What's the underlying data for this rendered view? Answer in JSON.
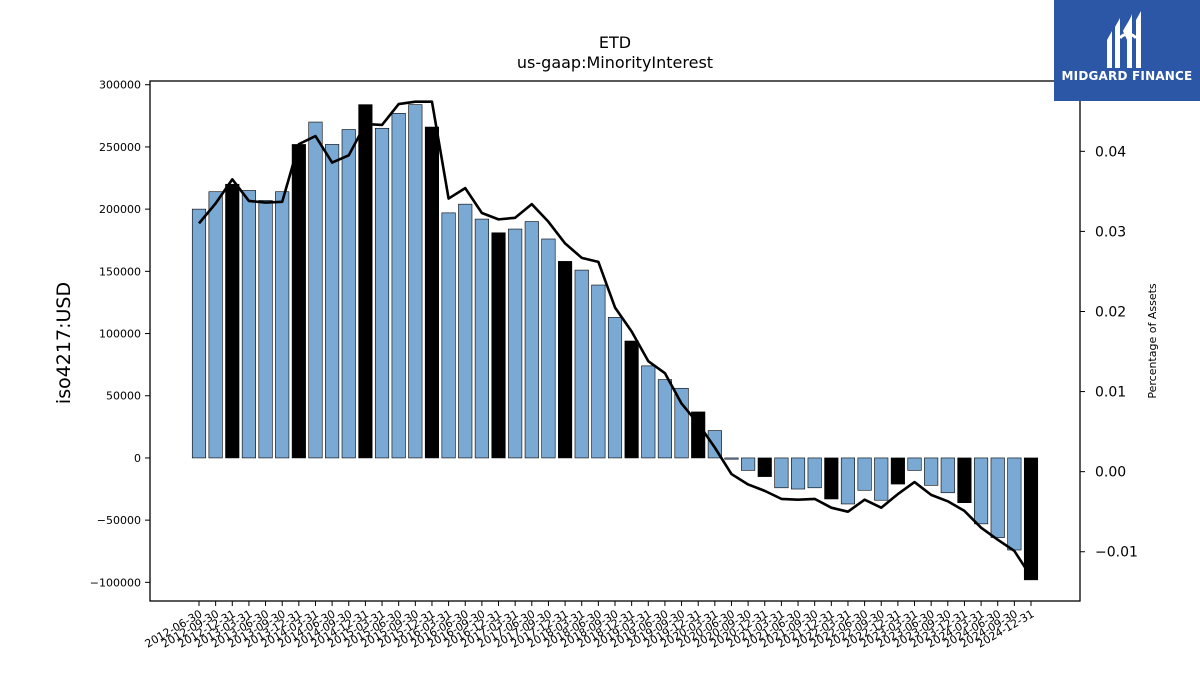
{
  "brand": {
    "name": "MIDGARD FINANCE",
    "bg_color": "#2b57a6",
    "icon": "midgard-logo-icon"
  },
  "chart_data": {
    "type": "bar",
    "title": "ETD",
    "subtitle": "us-gaap:MinorityInterest",
    "ylabel": "iso4217:USD",
    "y2label": "Percentage of Assets",
    "ylim": [
      -115000,
      303000
    ],
    "y2lim": [
      -0.01615,
      0.04878
    ],
    "yticks": [
      -100000,
      -50000,
      0,
      50000,
      100000,
      150000,
      200000,
      250000,
      300000
    ],
    "yticks_display": [
      "−100000",
      "−50000",
      "0",
      "50000",
      "100000",
      "150000",
      "200000",
      "250000",
      "300000"
    ],
    "y2ticks": [
      -0.01,
      0.0,
      0.01,
      0.02,
      0.03,
      0.04
    ],
    "y2ticks_display": [
      "−0.01",
      "0.00",
      "0.01",
      "0.02",
      "0.03",
      "0.04"
    ],
    "grid": false,
    "colors": {
      "quarter": "#7aaad4",
      "year_end": "#000000",
      "line": "#000000"
    },
    "categories": [
      "2012-06-30",
      "2012-09-30",
      "2012-12-31",
      "2013-03-31",
      "2013-06-30",
      "2013-09-30",
      "2013-12-31",
      "2014-03-31",
      "2014-06-30",
      "2014-09-30",
      "2014-12-31",
      "2015-03-31",
      "2015-06-30",
      "2015-09-30",
      "2015-12-31",
      "2016-03-31",
      "2016-06-30",
      "2016-09-30",
      "2016-12-31",
      "2017-03-31",
      "2017-06-30",
      "2017-09-30",
      "2017-12-31",
      "2018-03-31",
      "2018-06-30",
      "2018-09-30",
      "2018-12-31",
      "2019-03-31",
      "2019-06-30",
      "2019-09-30",
      "2019-12-31",
      "2020-03-31",
      "2020-06-30",
      "2020-09-30",
      "2020-12-31",
      "2021-03-31",
      "2021-06-30",
      "2021-09-30",
      "2021-12-31",
      "2022-03-31",
      "2022-06-30",
      "2022-09-30",
      "2022-12-31",
      "2023-03-31",
      "2023-06-30",
      "2023-09-30",
      "2023-12-31",
      "2024-03-31",
      "2024-06-30",
      "2024-09-30",
      "2024-12-31"
    ],
    "series": [
      {
        "values": [
          200000,
          214000,
          220000,
          215000,
          207000,
          214000,
          252000,
          270000,
          252000,
          264000,
          284000,
          265000,
          277000,
          284000,
          266000,
          197000,
          204000,
          192000,
          181000,
          184000,
          190000,
          176000,
          158000,
          151000,
          139000,
          113000,
          94000,
          74000,
          63000,
          56000,
          37000,
          22000,
          -1000,
          -10000,
          -15000,
          -24000,
          -25000,
          -24000,
          -33000,
          -37000,
          -26000,
          -34000,
          -21000,
          -10000,
          -22000,
          -28000,
          -36000,
          -53000,
          -64000,
          -74000,
          -98000
        ]
      },
      {
        "axis": "right",
        "values": [
          0.031,
          0.0335,
          0.0365,
          0.0338,
          0.0336,
          0.0337,
          0.0409,
          0.0419,
          0.0386,
          0.0395,
          0.0434,
          0.0433,
          0.0459,
          0.0462,
          0.0462,
          0.0341,
          0.0354,
          0.0323,
          0.0315,
          0.0317,
          0.0334,
          0.0312,
          0.0285,
          0.0267,
          0.0262,
          0.0205,
          0.0175,
          0.0138,
          0.0123,
          0.0085,
          0.006,
          0.003,
          -0.0003,
          -0.0016,
          -0.0024,
          -0.0034,
          -0.0035,
          -0.0034,
          -0.0045,
          -0.005,
          -0.0035,
          -0.0045,
          -0.0028,
          -0.0013,
          -0.0029,
          -0.0037,
          -0.0049,
          -0.007,
          -0.0085,
          -0.0099,
          -0.0131
        ]
      }
    ]
  }
}
